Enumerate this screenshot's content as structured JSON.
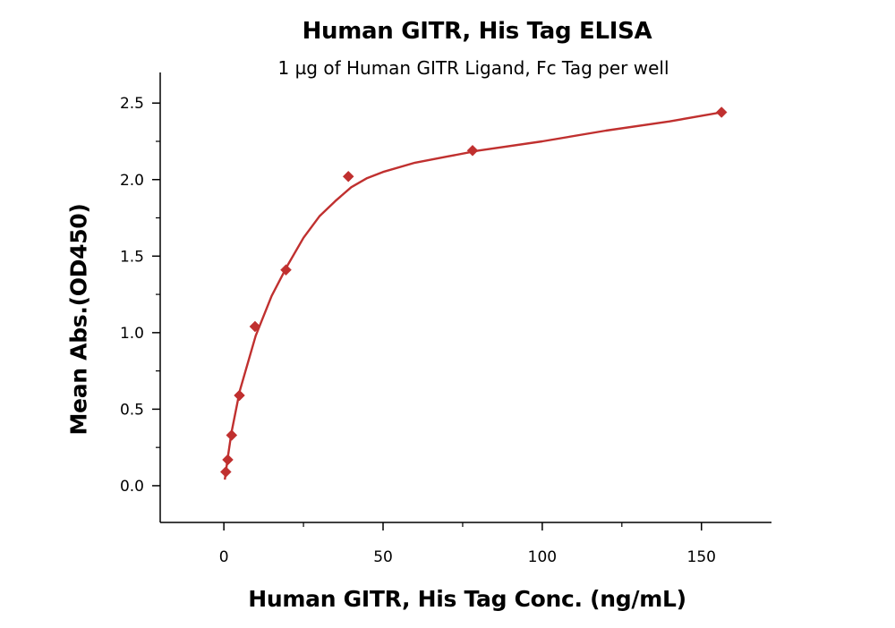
{
  "chart_data": {
    "type": "scatter",
    "title": "Human GITR, His Tag ELISA",
    "subtitle": "1 µg of Human GITR Ligand, Fc Tag per well",
    "xlabel": "Human GITR, His Tag Conc. (ng/mL)",
    "ylabel": "Mean Abs.(OD450)",
    "xlim": [
      -20,
      172
    ],
    "ylim": [
      -0.24,
      2.7
    ],
    "xticks": [
      0,
      50,
      100,
      150
    ],
    "yticks": [
      0.0,
      0.5,
      1.0,
      1.5,
      2.0,
      2.5
    ],
    "xtick_labels": [
      "0",
      "50",
      "100",
      "150"
    ],
    "ytick_labels": [
      "0.0",
      "0.5",
      "1.0",
      "1.5",
      "2.0",
      "2.5"
    ],
    "grid": false,
    "marker": "diamond",
    "color": "#c0302f",
    "series": [
      {
        "points": [
          {
            "x": 0.61,
            "y": 0.09
          },
          {
            "x": 1.22,
            "y": 0.17
          },
          {
            "x": 2.44,
            "y": 0.33
          },
          {
            "x": 4.88,
            "y": 0.59
          },
          {
            "x": 9.77,
            "y": 1.04
          },
          {
            "x": 19.5,
            "y": 1.41
          },
          {
            "x": 39.1,
            "y": 2.02
          },
          {
            "x": 78.1,
            "y": 2.19
          },
          {
            "x": 156.3,
            "y": 2.44
          }
        ],
        "fit_curve": [
          {
            "x": 0.3,
            "y": 0.04
          },
          {
            "x": 1.2,
            "y": 0.18
          },
          {
            "x": 2.4,
            "y": 0.35
          },
          {
            "x": 5,
            "y": 0.62
          },
          {
            "x": 10,
            "y": 0.98
          },
          {
            "x": 15,
            "y": 1.24
          },
          {
            "x": 20,
            "y": 1.44
          },
          {
            "x": 25,
            "y": 1.62
          },
          {
            "x": 30,
            "y": 1.76
          },
          {
            "x": 35,
            "y": 1.86
          },
          {
            "x": 40,
            "y": 1.95
          },
          {
            "x": 45,
            "y": 2.01
          },
          {
            "x": 50,
            "y": 2.05
          },
          {
            "x": 60,
            "y": 2.11
          },
          {
            "x": 70,
            "y": 2.15
          },
          {
            "x": 80,
            "y": 2.19
          },
          {
            "x": 100,
            "y": 2.25
          },
          {
            "x": 120,
            "y": 2.32
          },
          {
            "x": 140,
            "y": 2.38
          },
          {
            "x": 156.3,
            "y": 2.44
          }
        ]
      }
    ]
  }
}
